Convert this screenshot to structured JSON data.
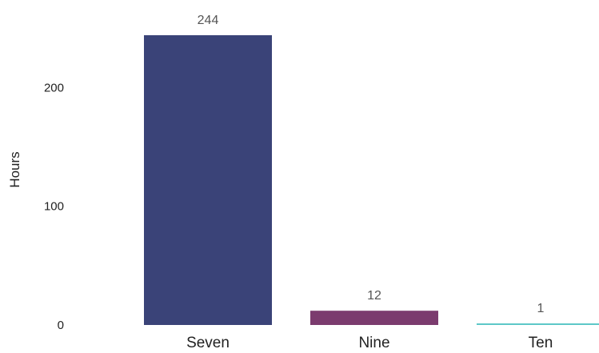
{
  "chart_data": {
    "type": "bar",
    "categories": [
      "Seven",
      "Nine",
      "Ten"
    ],
    "values": [
      244,
      12,
      1
    ],
    "colors": [
      "#3a4378",
      "#7b3b6e",
      "#5ec8c8"
    ],
    "data_labels": [
      "244",
      "12",
      "1"
    ],
    "ylabel": "Hours",
    "yticks": [
      0,
      100,
      200
    ],
    "ytick_labels": [
      "0",
      "100",
      "200"
    ],
    "ylim": [
      0,
      244
    ],
    "grid": false,
    "legend": "none"
  }
}
